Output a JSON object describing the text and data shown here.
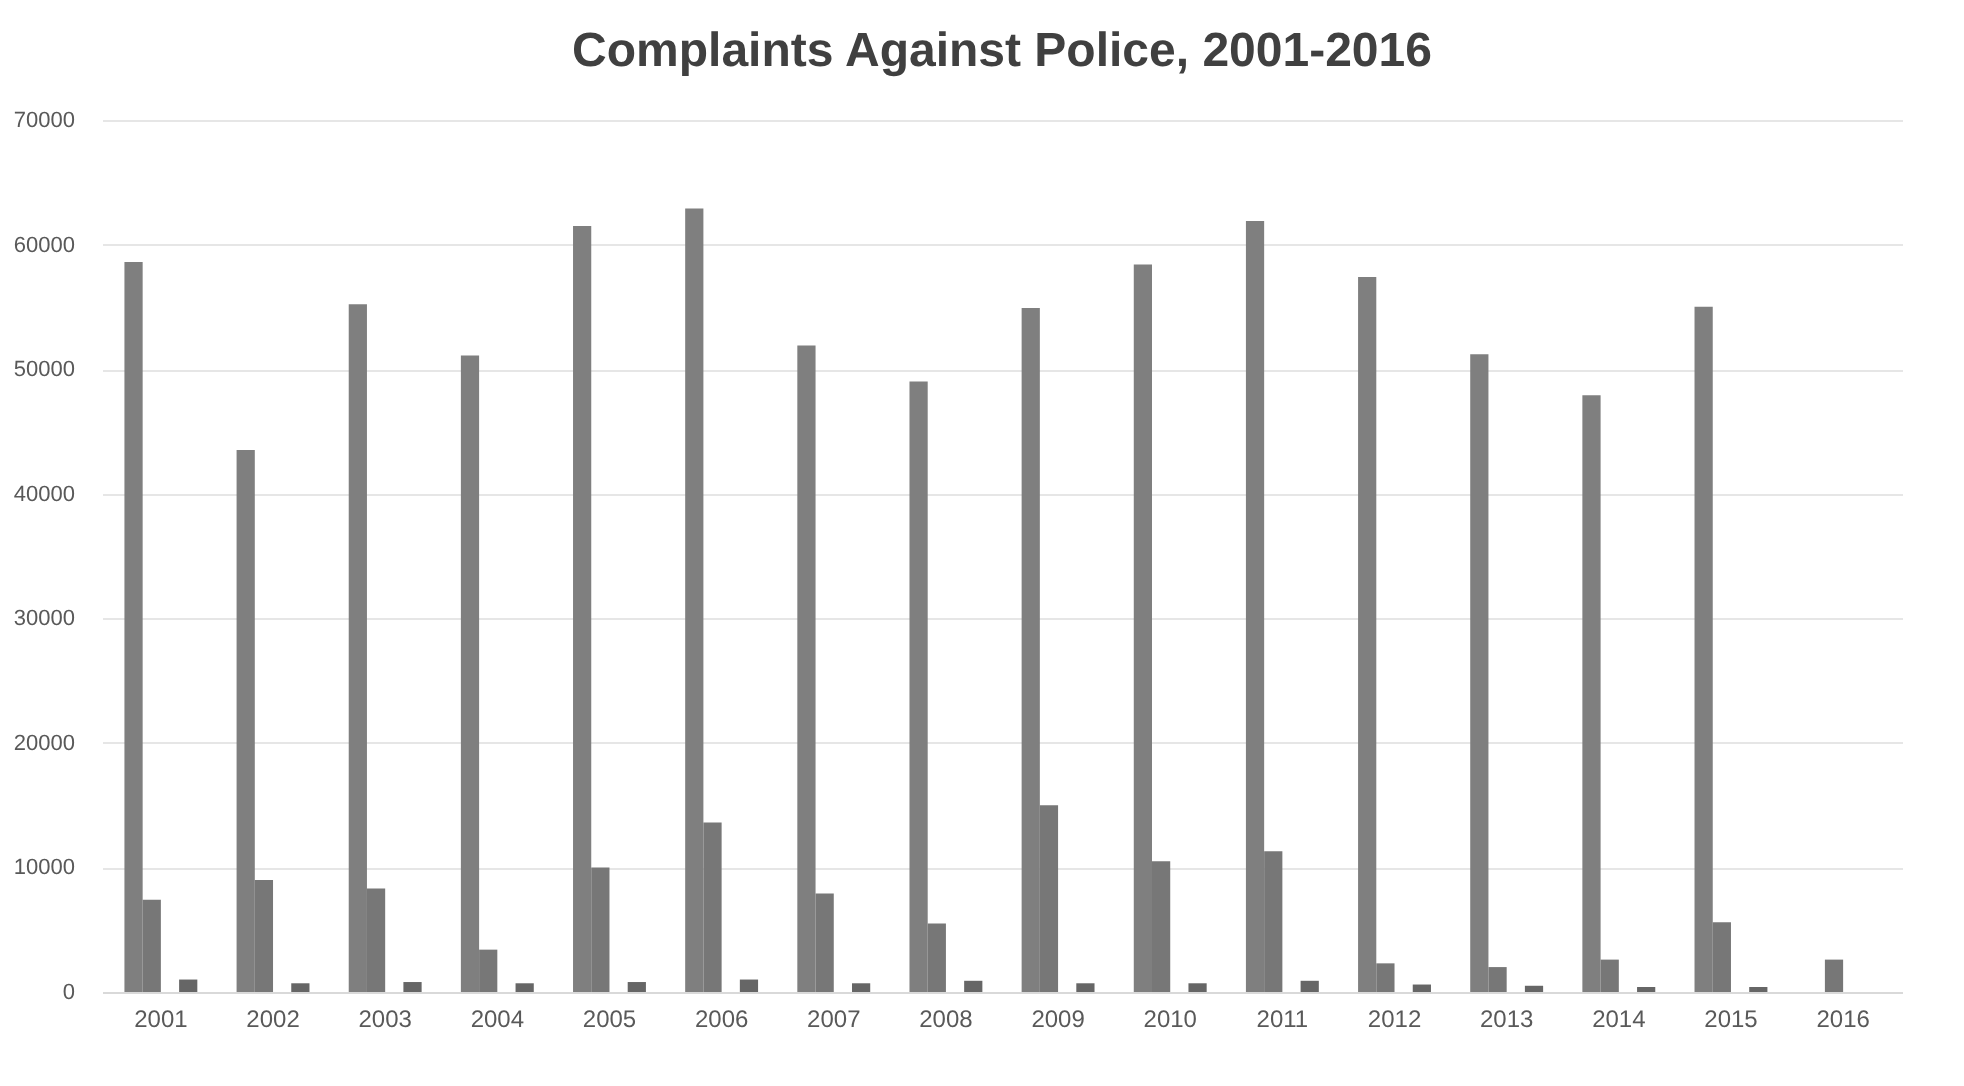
{
  "chart_data": {
    "type": "bar",
    "title": "Complaints Against Police, 2001-2016",
    "categories": [
      "2001",
      "2002",
      "2003",
      "2004",
      "2005",
      "2006",
      "2007",
      "2008",
      "2009",
      "2010",
      "2011",
      "2012",
      "2013",
      "2014",
      "2015",
      "2016"
    ],
    "series": [
      {
        "color": "#7f7f7f",
        "values": [
          58600,
          43500,
          55200,
          51100,
          61500,
          62900,
          51900,
          49000,
          54900,
          58400,
          61900,
          57400,
          51200,
          47900,
          55000,
          null
        ]
      },
      {
        "color": "#777777",
        "values": [
          7400,
          9000,
          8300,
          3400,
          10000,
          13600,
          7900,
          5500,
          15000,
          10500,
          11300,
          2300,
          2000,
          2600,
          5600,
          2600
        ]
      },
      {
        "color": "#707070",
        "values": [
          null,
          null,
          null,
          null,
          null,
          null,
          null,
          null,
          null,
          null,
          null,
          null,
          null,
          null,
          null,
          null
        ]
      },
      {
        "color": "#666666",
        "values": [
          1000,
          700,
          800,
          700,
          800,
          1000,
          700,
          900,
          700,
          700,
          900,
          600,
          500,
          400,
          400,
          null
        ]
      }
    ],
    "ylim": [
      0,
      70000
    ],
    "yticks": [
      0,
      10000,
      20000,
      30000,
      40000,
      50000,
      60000,
      70000
    ],
    "grid": "y",
    "legend": false
  }
}
